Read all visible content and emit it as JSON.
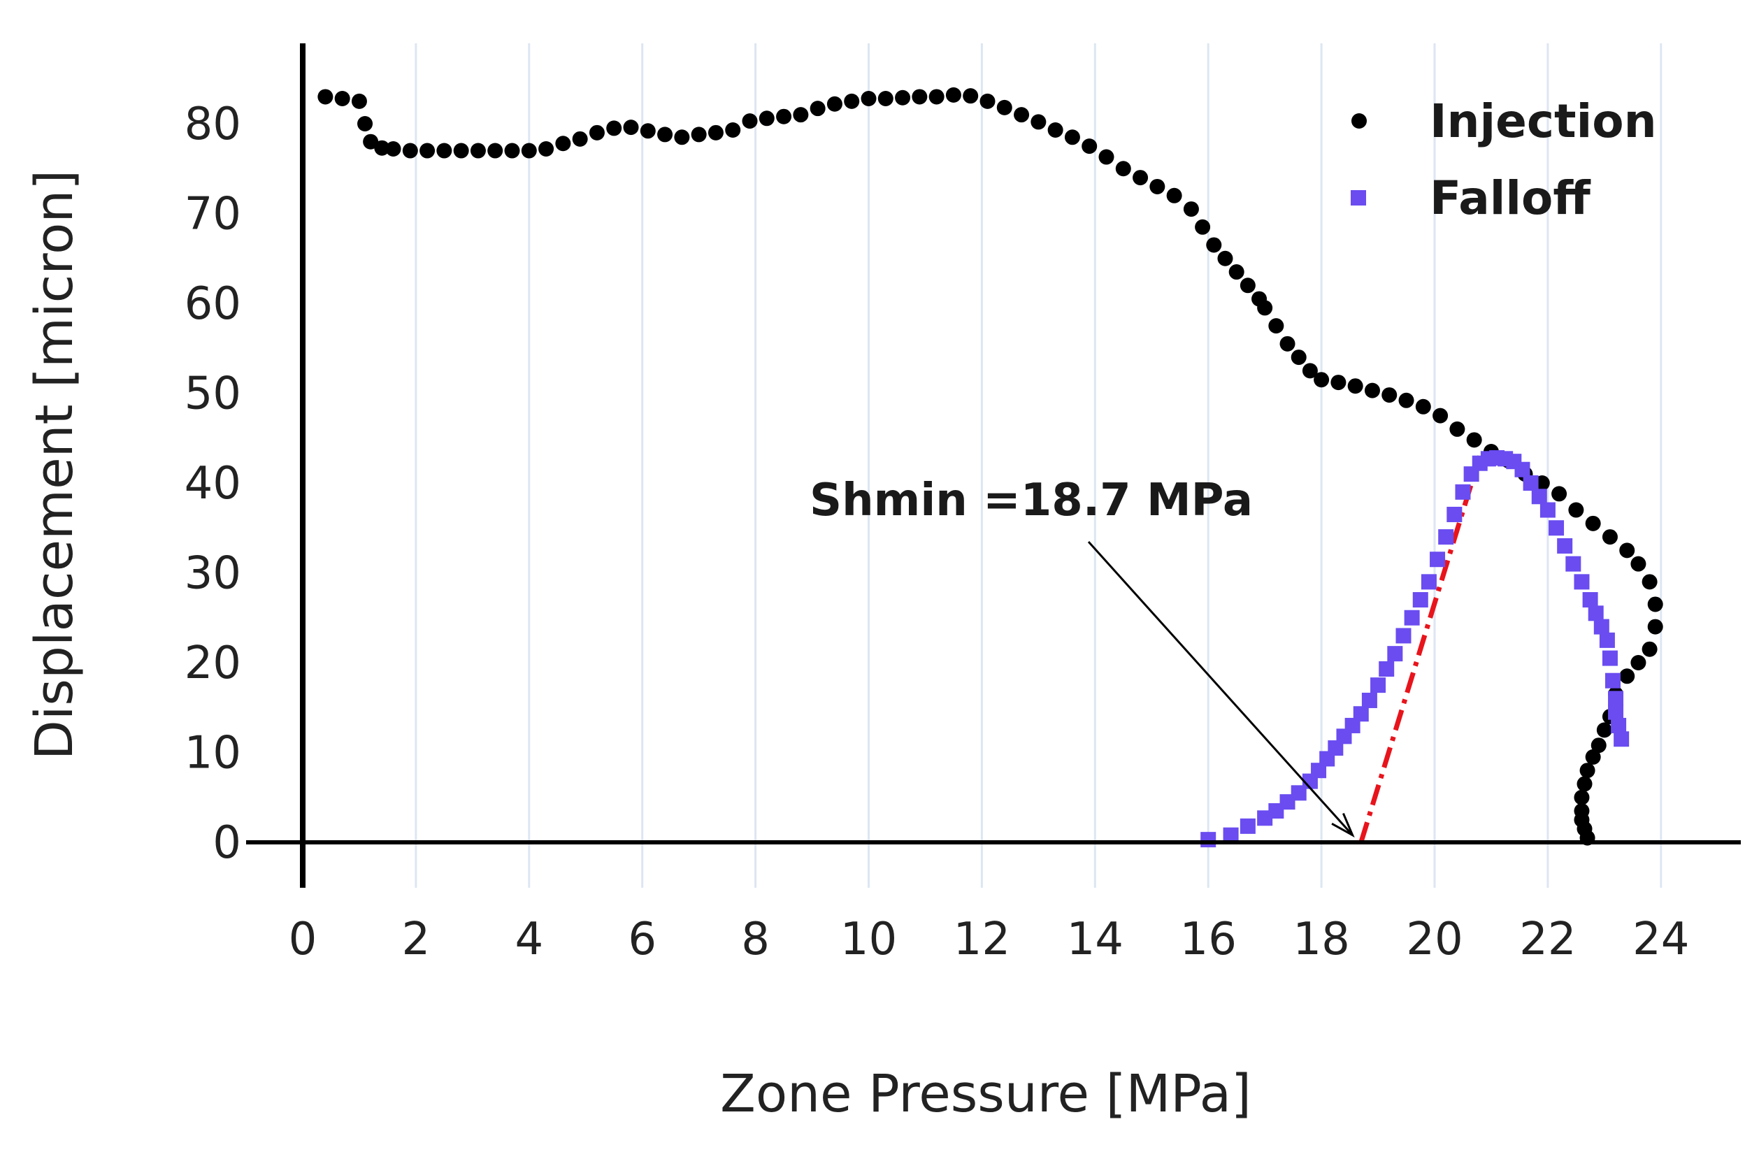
{
  "chart_data": {
    "type": "scatter",
    "title": "",
    "xlabel": "Zone Pressure [MPa]",
    "ylabel": "Displacement [micron]",
    "xlim": [
      0,
      25.2
    ],
    "ylim": [
      -5.5,
      88
    ],
    "x_ticks": [
      0,
      2,
      4,
      6,
      8,
      10,
      12,
      14,
      16,
      18,
      20,
      22,
      24
    ],
    "y_ticks": [
      0,
      10,
      20,
      30,
      40,
      50,
      60,
      70,
      80
    ],
    "grid": "vertical",
    "legend_position": "top-right",
    "colors": {
      "injection": "#000000",
      "falloff": "#6a4cf0",
      "fit_line": "#e8141c",
      "grid": "#dde6f2"
    },
    "series": [
      {
        "name": "Injection",
        "marker": "circle",
        "x": [
          0.4,
          0.7,
          1.0,
          1.1,
          1.2,
          1.4,
          1.6,
          1.9,
          2.2,
          2.5,
          2.8,
          3.1,
          3.4,
          3.7,
          4.0,
          4.3,
          4.6,
          4.9,
          5.2,
          5.5,
          5.8,
          6.1,
          6.4,
          6.7,
          7.0,
          7.3,
          7.6,
          7.9,
          8.2,
          8.5,
          8.8,
          9.1,
          9.4,
          9.7,
          10.0,
          10.3,
          10.6,
          10.9,
          11.2,
          11.5,
          11.8,
          12.1,
          12.4,
          12.7,
          13.0,
          13.3,
          13.6,
          13.9,
          14.2,
          14.5,
          14.8,
          15.1,
          15.4,
          15.7,
          15.9,
          16.1,
          16.3,
          16.5,
          16.7,
          16.9,
          17.0,
          17.2,
          17.4,
          17.6,
          17.8,
          18.0,
          18.3,
          18.6,
          18.9,
          19.2,
          19.5,
          19.8,
          20.1,
          20.4,
          20.7,
          21.0,
          21.3,
          21.6,
          21.9,
          22.2,
          22.5,
          22.8,
          23.1,
          23.4,
          23.6,
          23.8,
          23.9,
          23.9,
          23.8,
          23.6,
          23.4,
          23.2,
          23.1,
          23.0,
          22.9,
          22.8,
          22.7,
          22.65,
          22.6,
          22.6,
          22.6,
          22.65,
          22.7
        ],
        "y": [
          83.0,
          82.8,
          82.5,
          80.0,
          78.0,
          77.3,
          77.2,
          77.0,
          77.0,
          77.0,
          77.0,
          77.0,
          77.0,
          77.0,
          77.0,
          77.2,
          77.8,
          78.3,
          79.0,
          79.5,
          79.6,
          79.2,
          78.8,
          78.5,
          78.8,
          79.0,
          79.3,
          80.3,
          80.6,
          80.8,
          81.0,
          81.7,
          82.2,
          82.5,
          82.8,
          82.8,
          82.9,
          83.0,
          83.0,
          83.2,
          83.1,
          82.5,
          81.8,
          81.0,
          80.2,
          79.3,
          78.5,
          77.5,
          76.3,
          75.0,
          74.0,
          73.0,
          72.0,
          70.5,
          68.5,
          66.5,
          65.0,
          63.5,
          62.0,
          60.5,
          59.5,
          57.5,
          55.5,
          54.0,
          52.5,
          51.5,
          51.2,
          50.8,
          50.3,
          49.8,
          49.2,
          48.5,
          47.5,
          46.0,
          44.8,
          43.5,
          42.5,
          41.0,
          40.0,
          38.8,
          37.0,
          35.5,
          34.0,
          32.5,
          31.0,
          29.0,
          26.5,
          24.0,
          21.5,
          20.0,
          18.5,
          16.5,
          14.0,
          12.5,
          10.8,
          9.5,
          8.0,
          6.5,
          5.0,
          3.5,
          2.5,
          1.5,
          0.5
        ]
      },
      {
        "name": "Falloff",
        "marker": "square",
        "x": [
          16.0,
          16.4,
          16.7,
          17.0,
          17.2,
          17.4,
          17.6,
          17.8,
          17.95,
          18.1,
          18.25,
          18.4,
          18.55,
          18.7,
          18.85,
          19.0,
          19.15,
          19.3,
          19.45,
          19.6,
          19.75,
          19.9,
          20.05,
          20.2,
          20.35,
          20.5,
          20.65,
          20.8,
          20.95,
          21.1,
          21.25,
          21.4,
          21.55,
          21.7,
          21.85,
          22.0,
          22.15,
          22.3,
          22.45,
          22.6,
          22.75,
          22.85,
          22.95,
          23.05,
          23.1,
          23.15,
          23.2,
          23.2,
          23.25,
          23.3
        ],
        "y": [
          0.3,
          0.8,
          1.8,
          2.7,
          3.5,
          4.5,
          5.5,
          6.8,
          8.0,
          9.3,
          10.5,
          11.8,
          13.0,
          14.3,
          15.8,
          17.5,
          19.3,
          21.0,
          23.0,
          25.0,
          27.0,
          29.0,
          31.5,
          34.0,
          36.5,
          39.0,
          41.0,
          42.2,
          42.7,
          42.8,
          42.7,
          42.4,
          41.5,
          40.0,
          38.5,
          37.0,
          35.0,
          33.0,
          31.0,
          29.0,
          27.0,
          25.5,
          24.0,
          22.5,
          20.5,
          18.0,
          16.0,
          14.5,
          13.0,
          11.5
        ]
      }
    ],
    "fit_line": {
      "x": [
        18.7,
        20.8
      ],
      "y": [
        0,
        43
      ]
    },
    "annotation": {
      "text": "Shmin =18.7  MPa",
      "arrow_to": [
        18.55,
        0.8
      ]
    }
  }
}
